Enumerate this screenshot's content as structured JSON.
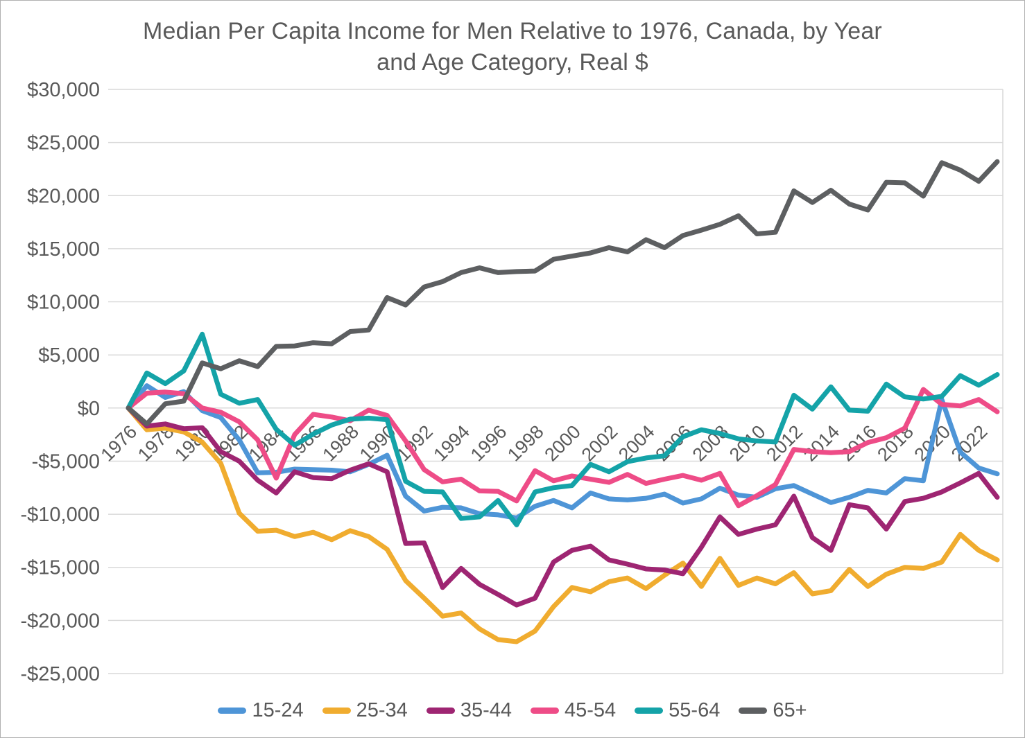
{
  "chart": {
    "title_lines": [
      "Median Per Capita Income for Men Relative to 1976, Canada, by Year",
      "and Age Category, Real $"
    ]
  },
  "colors": {
    "text": "#595959",
    "gridline": "#D9D9D9",
    "plot_border": "#D9D9D9",
    "background": "#FFFFFF"
  },
  "chart_data": {
    "type": "line",
    "title": "Median Per Capita Income for Men Relative to 1976, Canada, by Year and Age Category, Real $",
    "grid": true,
    "legend_position": "bottom",
    "ylim": [
      -25000,
      30000
    ],
    "y_ticks": [
      30000,
      25000,
      20000,
      15000,
      10000,
      5000,
      0,
      -5000,
      -10000,
      -15000,
      -20000,
      -25000
    ],
    "y_tick_labels": [
      "$30,000",
      "$25,000",
      "$20,000",
      "$15,000",
      "$10,000",
      "$5,000",
      "$0",
      "-$5,000",
      "-$10,000",
      "-$15,000",
      "-$20,000",
      "-$25,000"
    ],
    "x": [
      1976,
      1977,
      1978,
      1979,
      1980,
      1981,
      1982,
      1983,
      1984,
      1985,
      1986,
      1987,
      1988,
      1989,
      1990,
      1991,
      1992,
      1993,
      1994,
      1995,
      1996,
      1997,
      1998,
      1999,
      2000,
      2001,
      2002,
      2003,
      2004,
      2005,
      2006,
      2007,
      2008,
      2009,
      2010,
      2011,
      2012,
      2013,
      2014,
      2015,
      2016,
      2017,
      2018,
      2019,
      2020,
      2021,
      2022,
      2023
    ],
    "x_tick_labels": [
      "1976",
      "1978",
      "1980",
      "1982",
      "1984",
      "1986",
      "1988",
      "1990",
      "1992",
      "1994",
      "1996",
      "1998",
      "2000",
      "2002",
      "2004",
      "2006",
      "2008",
      "2010",
      "2012",
      "2014",
      "2016",
      "2018",
      "2020",
      "2022"
    ],
    "series": [
      {
        "name": "15-24",
        "color": "#4E95D7",
        "values": [
          0,
          2100,
          1000,
          1550,
          -250,
          -900,
          -3000,
          -6100,
          -6050,
          -5750,
          -5800,
          -5850,
          -6000,
          -5300,
          -4450,
          -8300,
          -9700,
          -9350,
          -9400,
          -9950,
          -10050,
          -10350,
          -9250,
          -8700,
          -9400,
          -8000,
          -8550,
          -8650,
          -8500,
          -8100,
          -8950,
          -8550,
          -7550,
          -8200,
          -8400,
          -7600,
          -7300,
          -8100,
          -8900,
          -8400,
          -7750,
          -8000,
          -6650,
          -6850,
          800,
          -4150,
          -5650,
          -6200
        ]
      },
      {
        "name": "25-34",
        "color": "#F0AC2F",
        "values": [
          0,
          -2050,
          -1900,
          -2250,
          -3200,
          -5200,
          -9900,
          -11600,
          -11500,
          -12100,
          -11700,
          -12400,
          -11550,
          -12100,
          -13300,
          -16250,
          -17900,
          -19600,
          -19300,
          -20800,
          -21800,
          -22000,
          -21000,
          -18700,
          -16900,
          -17300,
          -16350,
          -16000,
          -17000,
          -15750,
          -14600,
          -16800,
          -14150,
          -16700,
          -16000,
          -16550,
          -15500,
          -17500,
          -17200,
          -15200,
          -16800,
          -15650,
          -15000,
          -15100,
          -14500,
          -11900,
          -13400,
          -14300
        ]
      },
      {
        "name": "35-44",
        "color": "#9E2572",
        "values": [
          0,
          -1700,
          -1500,
          -1950,
          -1850,
          -4100,
          -5000,
          -6800,
          -8000,
          -6000,
          -6550,
          -6650,
          -5850,
          -5250,
          -6000,
          -12750,
          -12700,
          -16900,
          -15100,
          -16600,
          -17550,
          -18550,
          -17900,
          -14500,
          -13400,
          -13000,
          -14300,
          -14700,
          -15150,
          -15250,
          -15600,
          -13100,
          -10250,
          -11900,
          -11400,
          -11000,
          -8300,
          -12200,
          -13400,
          -9100,
          -9400,
          -11400,
          -8800,
          -8500,
          -7900,
          -7050,
          -6150,
          -8400
        ]
      },
      {
        "name": "45-54",
        "color": "#EE4C87",
        "values": [
          0,
          1400,
          1500,
          1350,
          0,
          -400,
          -1300,
          -3000,
          -6600,
          -2500,
          -600,
          -850,
          -1200,
          -200,
          -700,
          -3100,
          -5800,
          -6950,
          -6700,
          -7800,
          -7850,
          -8750,
          -5900,
          -6850,
          -6400,
          -6700,
          -7000,
          -6250,
          -7100,
          -6700,
          -6350,
          -6800,
          -6150,
          -9200,
          -8250,
          -7200,
          -3900,
          -4100,
          -4200,
          -4100,
          -3250,
          -2800,
          -1900,
          1750,
          350,
          200,
          800,
          -350
        ]
      },
      {
        "name": "55-64",
        "color": "#14A3A8",
        "values": [
          0,
          3300,
          2300,
          3500,
          6950,
          1300,
          450,
          800,
          -2000,
          -3500,
          -2450,
          -1600,
          -1050,
          -950,
          -1100,
          -6900,
          -7850,
          -7900,
          -10400,
          -10250,
          -8700,
          -11000,
          -7900,
          -7500,
          -7300,
          -5300,
          -6000,
          -5050,
          -4700,
          -4500,
          -2700,
          -2050,
          -2400,
          -2900,
          -3100,
          -3200,
          1200,
          -100,
          2000,
          -200,
          -300,
          2250,
          1050,
          850,
          1100,
          3050,
          2150,
          3150
        ]
      },
      {
        "name": "65+",
        "color": "#5D5F61",
        "values": [
          0,
          -1500,
          400,
          650,
          4250,
          3700,
          4450,
          3900,
          5800,
          5850,
          6150,
          6050,
          7200,
          7350,
          10400,
          9700,
          11400,
          11900,
          12750,
          13200,
          12750,
          12850,
          12900,
          14000,
          14300,
          14600,
          15100,
          14700,
          15850,
          15100,
          16250,
          16750,
          17300,
          18100,
          16400,
          16550,
          20450,
          19350,
          20500,
          19200,
          18650,
          21250,
          21200,
          19950,
          23100,
          22400,
          21350,
          23200
        ]
      }
    ]
  }
}
